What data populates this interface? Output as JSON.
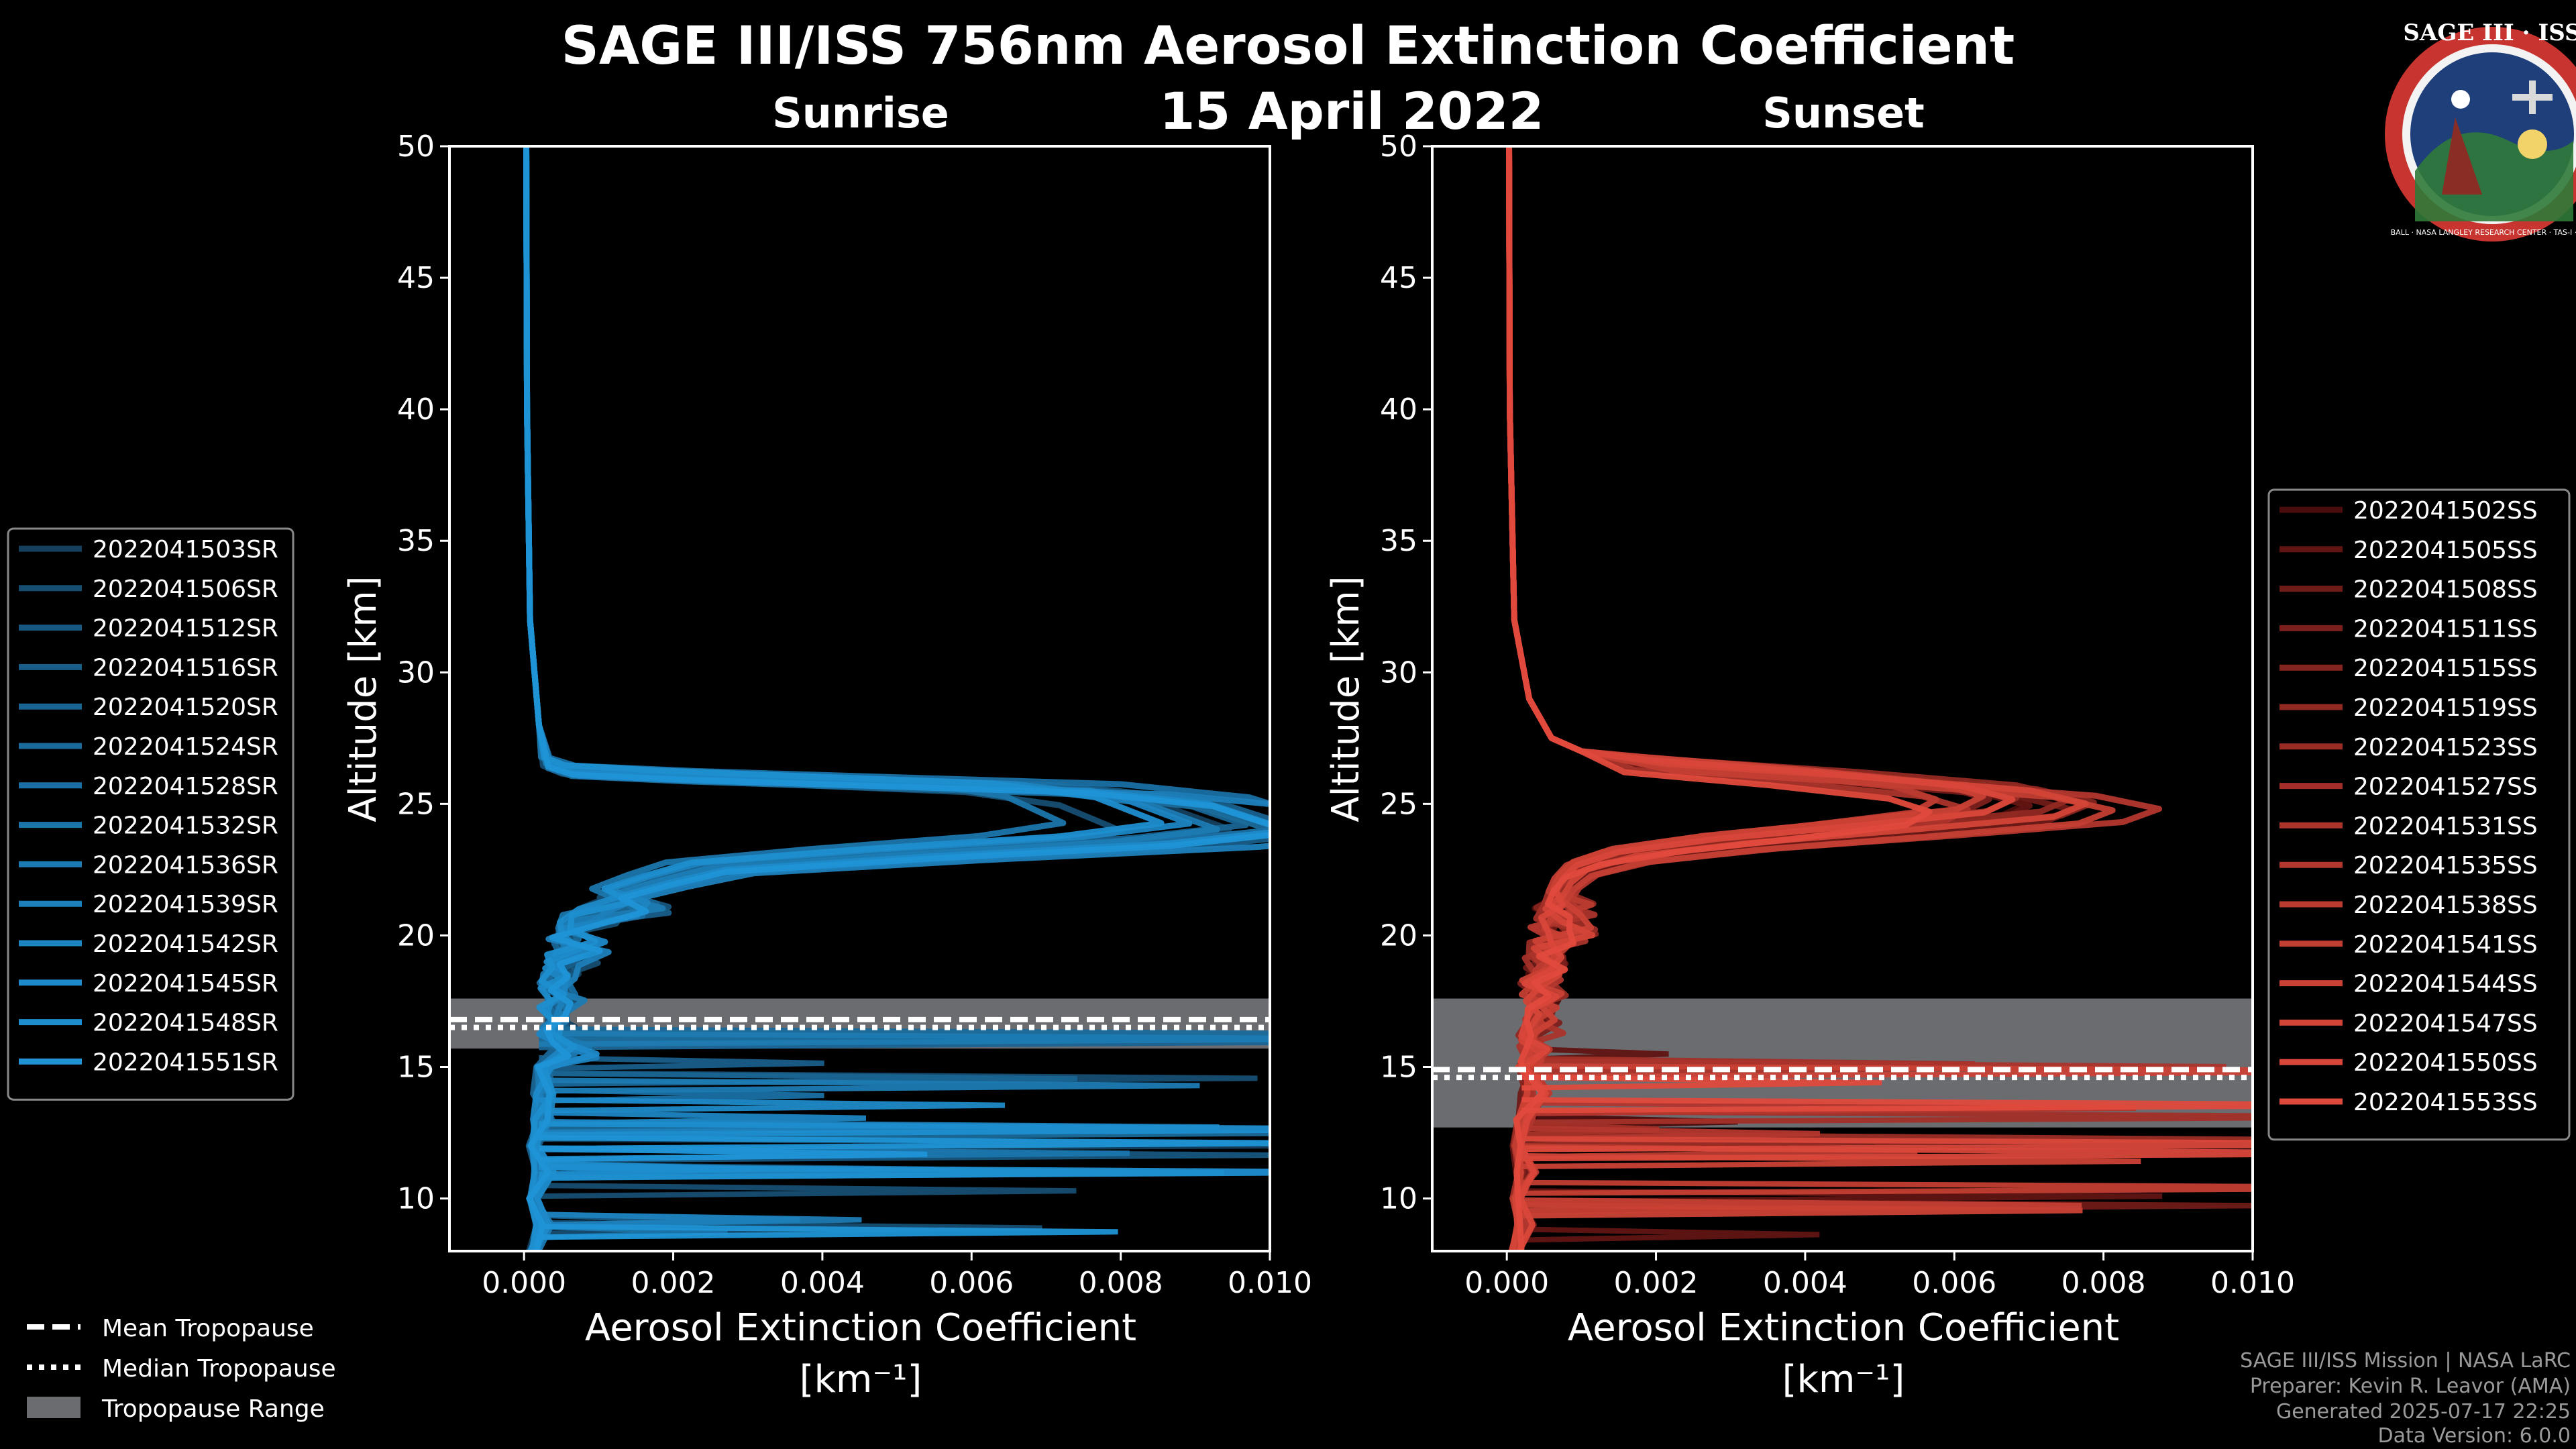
{
  "title": "SAGE III/ISS 756nm Aerosol Extinction Coefficient",
  "date": "15 April 2022",
  "colors": {
    "sunrise": "#1f93d6",
    "sunset": "#e04a3c",
    "tropo_band": "#6a6c70",
    "background": "#000000"
  },
  "logo": {
    "text": "SAGE III · ISS",
    "ring_text": "BALL · NASA LANGLEY RESEARCH CENTER · TAS-I · ESA"
  },
  "chart_data": [
    {
      "type": "line",
      "title": "Sunrise",
      "xlabel": "Aerosol Extinction Coefficient",
      "xlabel_units": "[km⁻¹]",
      "ylabel": "Altitude [km]",
      "xlim": [
        -0.001,
        0.01
      ],
      "ylim": [
        8,
        50
      ],
      "xticks": [
        0.0,
        0.002,
        0.004,
        0.006,
        0.008,
        0.01
      ],
      "xtick_labels": [
        "0.000",
        "0.002",
        "0.004",
        "0.006",
        "0.008",
        "0.010"
      ],
      "yticks": [
        10,
        15,
        20,
        25,
        30,
        35,
        40,
        45,
        50
      ],
      "tropopause": {
        "mean": 16.8,
        "median": 16.5,
        "min": 15.7,
        "max": 17.6
      },
      "series_names": [
        "2022041503SR",
        "2022041506SR",
        "2022041512SR",
        "2022041516SR",
        "2022041520SR",
        "2022041524SR",
        "2022041528SR",
        "2022041532SR",
        "2022041536SR",
        "2022041539SR",
        "2022041542SR",
        "2022041545SR",
        "2022041548SR",
        "2022041551SR"
      ],
      "base_profile": {
        "alt": [
          50,
          40,
          32,
          28,
          26.5,
          26.2,
          26.0,
          25.5,
          25.0,
          24.5,
          24.0,
          23.5,
          23.0,
          22.5,
          22.0,
          21.5,
          21.0,
          20.5,
          20.0,
          19.5,
          19.0,
          18.5,
          18.0,
          17.5,
          17.0,
          16.5,
          16.0,
          15.5,
          15.0,
          14.0,
          13.0,
          12.0,
          11.0,
          10.0,
          9.0,
          8.0
        ],
        "ext": [
          3e-05,
          4e-05,
          8e-05,
          0.0002,
          0.0003,
          0.0006,
          0.002,
          0.007,
          0.0085,
          0.009,
          0.0095,
          0.008,
          0.005,
          0.0025,
          0.0018,
          0.0012,
          0.001,
          0.0008,
          0.0004,
          0.0006,
          0.0005,
          0.0004,
          0.0003,
          0.0005,
          0.0003,
          0.0004,
          0.0003,
          0.0005,
          0.0002,
          0.0002,
          0.0002,
          0.0001,
          0.0002,
          0.0001,
          0.0002,
          0.0001
        ]
      }
    },
    {
      "type": "line",
      "title": "Sunset",
      "xlabel": "Aerosol Extinction Coefficient",
      "xlabel_units": "[km⁻¹]",
      "ylabel": "Altitude [km]",
      "xlim": [
        -0.001,
        0.01
      ],
      "ylim": [
        8,
        50
      ],
      "xticks": [
        0.0,
        0.002,
        0.004,
        0.006,
        0.008,
        0.01
      ],
      "xtick_labels": [
        "0.000",
        "0.002",
        "0.004",
        "0.006",
        "0.008",
        "0.010"
      ],
      "yticks": [
        10,
        15,
        20,
        25,
        30,
        35,
        40,
        45,
        50
      ],
      "tropopause": {
        "mean": 14.9,
        "median": 14.6,
        "min": 12.7,
        "max": 17.6
      },
      "series_names": [
        "2022041502SS",
        "2022041505SS",
        "2022041508SS",
        "2022041511SS",
        "2022041515SS",
        "2022041519SS",
        "2022041523SS",
        "2022041527SS",
        "2022041531SS",
        "2022041535SS",
        "2022041538SS",
        "2022041541SS",
        "2022041544SS",
        "2022041547SS",
        "2022041550SS",
        "2022041553SS"
      ],
      "base_profile": {
        "alt": [
          50,
          40,
          32,
          29,
          27.5,
          27.0,
          26.5,
          26.0,
          25.5,
          25.0,
          24.5,
          24.0,
          23.5,
          23.0,
          22.5,
          22.0,
          21.5,
          21.0,
          20.5,
          20.0,
          19.5,
          19.0,
          18.5,
          18.0,
          17.5,
          17.0,
          16.5,
          16.0,
          15.5,
          15.0,
          14.0,
          13.0,
          12.0,
          11.0,
          10.0,
          9.0,
          8.0
        ],
        "ext": [
          3e-05,
          4e-05,
          0.0001,
          0.0003,
          0.0006,
          0.001,
          0.002,
          0.0045,
          0.0065,
          0.0072,
          0.0068,
          0.005,
          0.003,
          0.0016,
          0.001,
          0.0008,
          0.0007,
          0.0006,
          0.0005,
          0.0006,
          0.0005,
          0.0004,
          0.0004,
          0.0003,
          0.0004,
          0.0003,
          0.0004,
          0.0002,
          0.0003,
          0.0002,
          0.0003,
          0.0002,
          0.0001,
          0.0002,
          0.0001,
          0.0002,
          0.0001
        ]
      }
    }
  ],
  "bottom_legend": [
    {
      "label": "Mean Tropopause",
      "style": "dashed"
    },
    {
      "label": "Median Tropopause",
      "style": "dotted"
    },
    {
      "label": "Tropopause Range",
      "style": "band"
    }
  ],
  "credits": [
    "SAGE III/ISS Mission | NASA LaRC",
    "Preparer: Kevin R. Leavor (AMA)",
    "Generated 2025-07-17 22:25",
    "Data Version: 6.0.0"
  ]
}
